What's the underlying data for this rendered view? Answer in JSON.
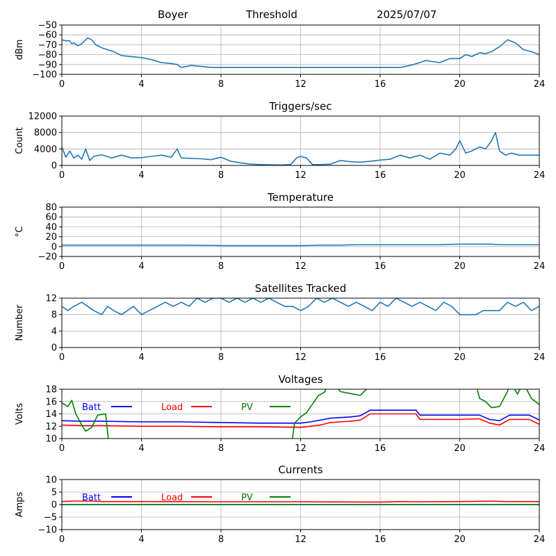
{
  "header": {
    "station": "Boyer",
    "mode": "Threshold",
    "date": "2025/07/07"
  },
  "colors": {
    "series_default": "#1f77b4",
    "batt": "#0000ff",
    "load": "#ff0000",
    "pv": "#008000",
    "grid": "#b0b0b0"
  },
  "chart_data": [
    {
      "type": "line",
      "title": "",
      "ylabel": "dBm",
      "xlim": [
        0,
        24
      ],
      "ylim": [
        -100,
        -50
      ],
      "xticks": [
        0,
        4,
        8,
        12,
        16,
        20,
        24
      ],
      "yticks": [
        -100,
        -90,
        -80,
        -70,
        -60,
        -50
      ],
      "grid": true,
      "series": [
        {
          "color": "#1f77b4",
          "x": [
            0,
            0.2,
            0.4,
            0.5,
            0.6,
            0.8,
            1.0,
            1.2,
            1.3,
            1.5,
            1.7,
            2.0,
            2.3,
            2.6,
            3.0,
            3.5,
            4.0,
            4.5,
            5.0,
            5.5,
            5.8,
            6.0,
            6.5,
            7.0,
            7.5,
            8.0,
            9.0,
            10.0,
            11.0,
            12.0,
            13.0,
            14.0,
            15.0,
            16.0,
            17.0,
            17.5,
            18.0,
            18.3,
            18.6,
            19.0,
            19.5,
            20.0,
            20.3,
            20.6,
            21.0,
            21.3,
            21.6,
            22.0,
            22.4,
            22.8,
            23.2,
            23.6,
            24.0
          ],
          "y": [
            -65,
            -66,
            -66,
            -69,
            -68,
            -71,
            -69,
            -65,
            -63,
            -65,
            -70,
            -73,
            -75,
            -77,
            -81,
            -82,
            -83,
            -85,
            -88,
            -89,
            -90,
            -93,
            -91,
            -92,
            -93,
            -93,
            -93,
            -93,
            -93,
            -93,
            -93,
            -93,
            -93,
            -93,
            -93,
            -91,
            -88,
            -86,
            -87,
            -88,
            -84,
            -84,
            -80,
            -82,
            -78,
            -79,
            -77,
            -72,
            -65,
            -68,
            -75,
            -77,
            -80
          ]
        }
      ]
    },
    {
      "type": "line",
      "title": "Triggers/sec",
      "ylabel": "Count",
      "xlim": [
        0,
        24
      ],
      "ylim": [
        0,
        12000
      ],
      "xticks": [
        0,
        4,
        8,
        12,
        16,
        20,
        24
      ],
      "yticks": [
        0,
        4000,
        8000,
        12000
      ],
      "grid": true,
      "series": [
        {
          "color": "#1f77b4",
          "x": [
            0,
            0.2,
            0.4,
            0.6,
            0.8,
            1.0,
            1.2,
            1.4,
            1.6,
            2.0,
            2.5,
            3.0,
            3.5,
            4.0,
            4.5,
            5.0,
            5.5,
            5.8,
            6.0,
            6.5,
            7.0,
            7.5,
            8.0,
            8.5,
            9.0,
            9.5,
            10.0,
            11.0,
            11.5,
            11.8,
            12.0,
            12.3,
            12.6,
            13.0,
            13.5,
            14.0,
            14.5,
            15.0,
            15.5,
            16.0,
            16.5,
            17.0,
            17.5,
            18.0,
            18.5,
            19.0,
            19.5,
            19.8,
            20.0,
            20.3,
            20.6,
            21.0,
            21.3,
            21.6,
            21.8,
            22.0,
            22.3,
            22.6,
            23.0,
            23.5,
            24.0
          ],
          "y": [
            4500,
            2000,
            3500,
            1800,
            2500,
            1500,
            4000,
            1200,
            2200,
            2600,
            1800,
            2500,
            1800,
            1900,
            2200,
            2500,
            2000,
            4000,
            1800,
            1700,
            1600,
            1400,
            2000,
            1000,
            600,
            300,
            200,
            100,
            200,
            1800,
            2200,
            1800,
            200,
            200,
            300,
            1200,
            900,
            800,
            1000,
            1300,
            1500,
            2500,
            1800,
            2500,
            1500,
            3000,
            2500,
            4000,
            6000,
            3000,
            3500,
            4500,
            4000,
            6000,
            8000,
            3500,
            2500,
            3000,
            2500,
            2500,
            2500
          ]
        }
      ]
    },
    {
      "type": "line",
      "title": "Temperature",
      "ylabel": "°C",
      "xlim": [
        0,
        24
      ],
      "ylim": [
        -20,
        80
      ],
      "xticks": [
        0,
        4,
        8,
        12,
        16,
        20,
        24
      ],
      "yticks": [
        -20,
        0,
        20,
        40,
        60,
        80
      ],
      "grid": true,
      "series": [
        {
          "color": "#1f77b4",
          "x": [
            0,
            2,
            4,
            6,
            7.3,
            8.2,
            9,
            10,
            11,
            12,
            12.6,
            13,
            14,
            15,
            16,
            17,
            18,
            19,
            20,
            21,
            21.6,
            22,
            23,
            24
          ],
          "y": [
            3,
            3,
            3,
            3,
            2.5,
            2,
            2,
            2,
            2,
            2,
            2.5,
            3,
            3,
            4,
            4,
            4,
            4,
            4,
            5,
            5,
            5,
            4,
            4,
            4
          ]
        }
      ]
    },
    {
      "type": "line",
      "title": "Satellites Tracked",
      "ylabel": "Number",
      "xlim": [
        0,
        24
      ],
      "ylim": [
        0,
        12
      ],
      "xticks": [
        0,
        4,
        8,
        12,
        16,
        20,
        24
      ],
      "yticks": [
        0,
        4,
        8,
        12
      ],
      "grid": true,
      "series": [
        {
          "color": "#1f77b4",
          "x": [
            0,
            0.3,
            0.6,
            1.0,
            1.3,
            1.6,
            2.0,
            2.3,
            2.6,
            3.0,
            3.3,
            3.6,
            4.0,
            4.4,
            4.8,
            5.2,
            5.6,
            6.0,
            6.4,
            6.8,
            7.2,
            7.6,
            8.0,
            8.4,
            8.8,
            9.2,
            9.6,
            10.0,
            10.4,
            10.8,
            11.2,
            11.6,
            12.0,
            12.4,
            12.8,
            13.2,
            13.6,
            14.0,
            14.4,
            14.8,
            15.2,
            15.6,
            16.0,
            16.4,
            16.8,
            17.2,
            17.6,
            18.0,
            18.4,
            18.8,
            19.2,
            19.6,
            20.0,
            20.4,
            20.8,
            21.2,
            21.6,
            22.0,
            22.4,
            22.8,
            23.2,
            23.6,
            24.0
          ],
          "y": [
            10,
            9,
            10,
            11,
            10,
            9,
            8,
            10,
            9,
            8,
            9,
            10,
            8,
            9,
            10,
            11,
            10,
            11,
            10,
            12,
            11,
            12,
            12,
            11,
            12,
            11,
            12,
            11,
            12,
            11,
            10,
            10,
            9,
            10,
            12,
            11,
            12,
            11,
            10,
            11,
            10,
            9,
            11,
            10,
            12,
            11,
            10,
            11,
            10,
            9,
            11,
            10,
            8,
            8,
            8,
            9,
            9,
            9,
            11,
            10,
            11,
            9,
            10
          ]
        }
      ]
    },
    {
      "type": "line",
      "title": "Voltages",
      "ylabel": "Volts",
      "xlim": [
        0,
        24
      ],
      "ylim": [
        10,
        18
      ],
      "xticks": [
        0,
        4,
        8,
        12,
        16,
        20,
        24
      ],
      "yticks": [
        10,
        12,
        14,
        16,
        18
      ],
      "grid": true,
      "legend": "top-left",
      "series": [
        {
          "name": "Batt",
          "color": "#0000ff",
          "x": [
            0,
            1,
            2,
            4,
            6,
            8,
            10,
            12,
            12.5,
            13,
            13.5,
            14,
            14.5,
            15,
            15.5,
            16,
            17,
            17.8,
            18,
            19,
            20,
            21,
            21.5,
            22,
            22.5,
            23,
            23.5,
            24
          ],
          "y": [
            12.9,
            12.8,
            12.8,
            12.7,
            12.7,
            12.6,
            12.5,
            12.5,
            12.7,
            13.0,
            13.3,
            13.4,
            13.5,
            13.7,
            14.6,
            14.6,
            14.6,
            14.6,
            13.8,
            13.8,
            13.8,
            13.8,
            13.1,
            12.9,
            13.8,
            13.8,
            13.8,
            13.0
          ]
        },
        {
          "name": "Load",
          "color": "#ff0000",
          "x": [
            0,
            1,
            2,
            4,
            6,
            8,
            10,
            12,
            12.5,
            13,
            13.5,
            14,
            14.5,
            15,
            15.5,
            16,
            17,
            17.8,
            18,
            19,
            20,
            21,
            21.5,
            22,
            22.5,
            23,
            23.5,
            24
          ],
          "y": [
            12.2,
            12.1,
            12.1,
            12.0,
            12.0,
            11.9,
            11.9,
            11.8,
            12.0,
            12.2,
            12.6,
            12.7,
            12.8,
            13.0,
            14.0,
            14.0,
            14.0,
            14.0,
            13.1,
            13.1,
            13.1,
            13.2,
            12.5,
            12.2,
            13.1,
            13.1,
            13.1,
            12.3
          ]
        },
        {
          "name": "PV",
          "color": "#008000",
          "x": [
            0,
            0.3,
            0.5,
            0.7,
            1.0,
            1.2,
            1.5,
            1.8,
            2.2,
            2.4,
            11.5,
            11.7,
            12.0,
            12.3,
            12.6,
            12.9,
            13.2,
            13.5,
            14.0,
            14.5,
            15.0,
            15.5,
            16.0,
            20.8,
            21.0,
            21.3,
            21.6,
            22.0,
            22.3,
            22.6,
            22.9,
            23.2,
            23.6,
            24.0
          ],
          "y": [
            15.8,
            15.2,
            16.2,
            14.0,
            12.2,
            11.2,
            11.8,
            13.8,
            14.0,
            8,
            8,
            12.5,
            13.5,
            14.2,
            15.6,
            17.0,
            17.5,
            19.5,
            17.6,
            17.3,
            17.0,
            18.6,
            19.0,
            19.0,
            16.5,
            16.0,
            15.0,
            15.2,
            17.0,
            19.0,
            17.2,
            19.0,
            16.5,
            15.5
          ]
        }
      ]
    },
    {
      "type": "line",
      "title": "Currents",
      "ylabel": "Amps",
      "xlim": [
        0,
        24
      ],
      "ylim": [
        -10,
        10
      ],
      "xticks": [
        0,
        4,
        8,
        12,
        16,
        20,
        24
      ],
      "yticks": [
        -10,
        -5,
        0,
        5,
        10
      ],
      "grid": true,
      "legend": "top-left",
      "series": [
        {
          "name": "Batt",
          "color": "#0000ff",
          "x": [
            0,
            4,
            8,
            12,
            16,
            20,
            24
          ],
          "y": [
            0,
            0,
            0,
            0,
            0,
            0,
            0
          ]
        },
        {
          "name": "Load",
          "color": "#ff0000",
          "x": [
            0,
            0.5,
            1.5,
            2,
            4,
            8,
            12,
            16,
            17,
            18,
            20,
            21,
            21.6,
            22.3,
            23,
            24
          ],
          "y": [
            1.2,
            1.4,
            1.4,
            1.2,
            1.2,
            1.1,
            1.1,
            1.0,
            1.2,
            1.1,
            1.2,
            1.3,
            1.4,
            1.2,
            1.2,
            1.2
          ]
        },
        {
          "name": "PV",
          "color": "#008000",
          "x": [
            0,
            4,
            8,
            12,
            16,
            20,
            24
          ],
          "y": [
            0,
            0,
            0,
            0,
            0,
            0,
            0
          ]
        }
      ]
    }
  ]
}
